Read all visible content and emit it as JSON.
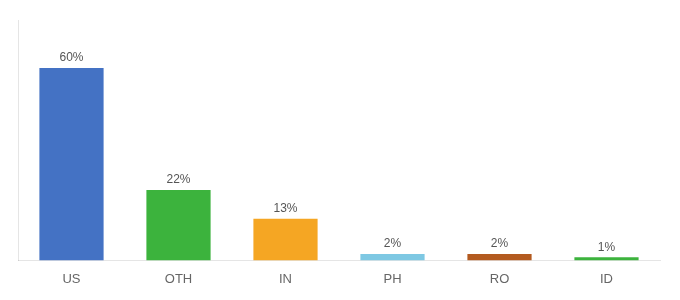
{
  "chart_data": {
    "type": "bar",
    "categories": [
      "US",
      "OTH",
      "IN",
      "PH",
      "RO",
      "ID"
    ],
    "values": [
      60,
      22,
      13,
      2,
      2,
      1
    ],
    "value_labels": [
      "60%",
      "22%",
      "13%",
      "2%",
      "2%",
      "1%"
    ],
    "colors": [
      "#4472c4",
      "#3cb33d",
      "#f5a623",
      "#7ec8e3",
      "#b35a1f",
      "#3cb33d"
    ],
    "ylim": [
      0,
      75
    ],
    "grid": false,
    "data_labels": true,
    "tick_labels": "x"
  }
}
